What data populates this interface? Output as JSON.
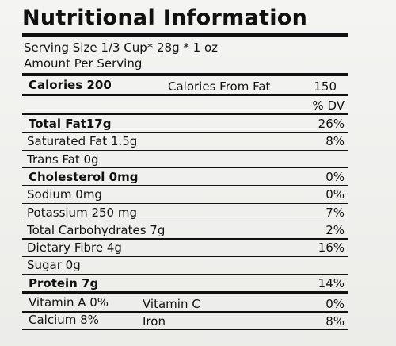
{
  "header": {
    "title": "Nutritional Information",
    "serving_size": "Serving Size 1/3 Cup* 28g * 1 oz",
    "amount_per_serving": "Amount Per Serving"
  },
  "calories": {
    "label": "Calories 200",
    "from_fat_label": "Calories From Fat",
    "from_fat_value": "150"
  },
  "dv_header": "% DV",
  "rows": [
    {
      "label": "Total Fat17g",
      "dv": "26%",
      "bold": true
    },
    {
      "label": "Saturated Fat 1.5g",
      "dv": "8%"
    },
    {
      "label": "Trans Fat 0g"
    },
    {
      "label": "Cholesterol 0mg",
      "dv": "0%",
      "bold": true
    },
    {
      "label": "Sodium 0mg",
      "dv": "0%"
    },
    {
      "label": "Potassium 250 mg",
      "dv": "7%"
    },
    {
      "label": "Total Carbohydrates  7g",
      "dv": "2%"
    },
    {
      "label": "Dietary Fibre 4g",
      "dv": "16%"
    },
    {
      "label": "Sugar 0g"
    },
    {
      "label": "Protein 7g",
      "dv": "14%",
      "bold": true
    }
  ],
  "vitamins": [
    {
      "left": "Vitamin A 0%",
      "middle": "Vitamin C",
      "dv": "0%"
    },
    {
      "left": "Calcium 8%",
      "middle": "Iron",
      "dv": "8%"
    }
  ]
}
